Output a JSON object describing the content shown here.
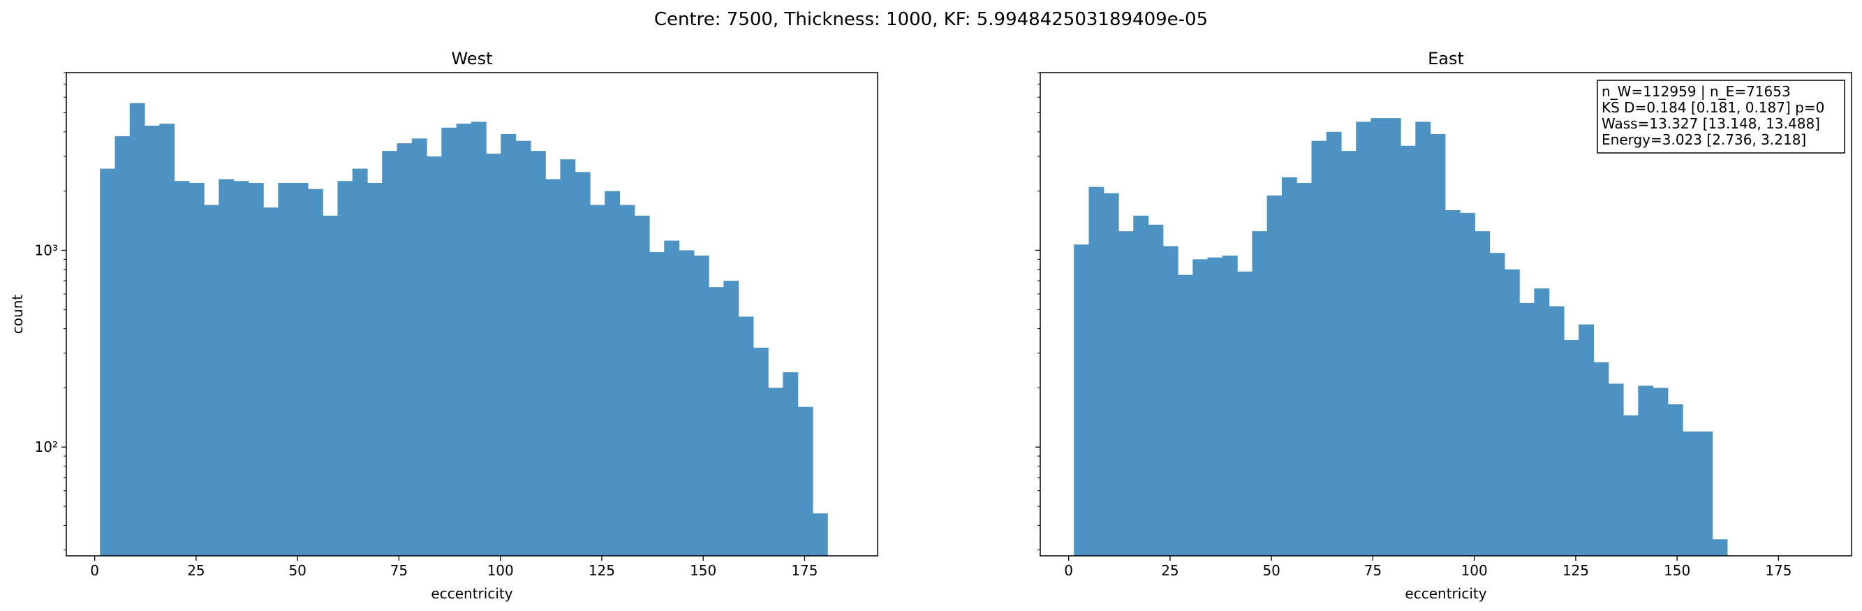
{
  "suptitle": "Centre: 7500, Thickness: 1000, KF: 5.994842503189409e-05",
  "bar_color": "#4c92c3",
  "chart_data": [
    {
      "type": "bar",
      "title": "West",
      "xlabel": "eccentricity",
      "ylabel": "count",
      "yscale": "log",
      "xlim": [
        -7,
        193
      ],
      "ylim": [
        28,
        8000
      ],
      "grid": false,
      "xticks": [
        0,
        25,
        50,
        75,
        100,
        125,
        150,
        175
      ],
      "yticks": [
        {
          "value": 100,
          "label": "10²"
        },
        {
          "value": 1000,
          "label": "10³"
        }
      ],
      "bin_start": 1.3,
      "bin_width": 3.66,
      "values": [
        2600,
        3800,
        5600,
        4300,
        4400,
        2250,
        2200,
        1700,
        2300,
        2250,
        2200,
        1650,
        2200,
        2200,
        2050,
        1500,
        2250,
        2600,
        2200,
        3200,
        3500,
        3700,
        3000,
        4200,
        4400,
        4500,
        3100,
        3900,
        3600,
        3200,
        2300,
        2900,
        2500,
        1700,
        2000,
        1700,
        1500,
        980,
        1120,
        1000,
        940,
        650,
        700,
        460,
        320,
        200,
        240,
        160,
        46
      ]
    },
    {
      "type": "bar",
      "title": "East",
      "xlabel": "eccentricity",
      "ylabel": "",
      "yscale": "log",
      "xlim": [
        -7,
        193
      ],
      "ylim": [
        28,
        8000
      ],
      "grid": false,
      "xticks": [
        0,
        25,
        50,
        75,
        100,
        125,
        150,
        175
      ],
      "yticks": [
        {
          "value": 100,
          "label": ""
        },
        {
          "value": 1000,
          "label": ""
        }
      ],
      "bin_start": 1.3,
      "bin_width": 3.66,
      "values": [
        1070,
        2100,
        1950,
        1250,
        1500,
        1350,
        1050,
        750,
        900,
        920,
        940,
        780,
        1250,
        1900,
        2350,
        2200,
        3600,
        4000,
        3200,
        4500,
        4700,
        4700,
        3400,
        4500,
        3900,
        1600,
        1550,
        1250,
        970,
        800,
        540,
        640,
        520,
        350,
        420,
        270,
        210,
        145,
        205,
        200,
        165,
        120,
        120,
        34
      ]
    }
  ],
  "stats_box": {
    "lines": [
      "n_W=112959 | n_E=71653",
      "KS D=0.184 [0.181, 0.187]  p=0",
      "Wass=13.327 [13.148, 13.488]",
      "Energy=3.023 [2.736, 3.218]"
    ]
  }
}
